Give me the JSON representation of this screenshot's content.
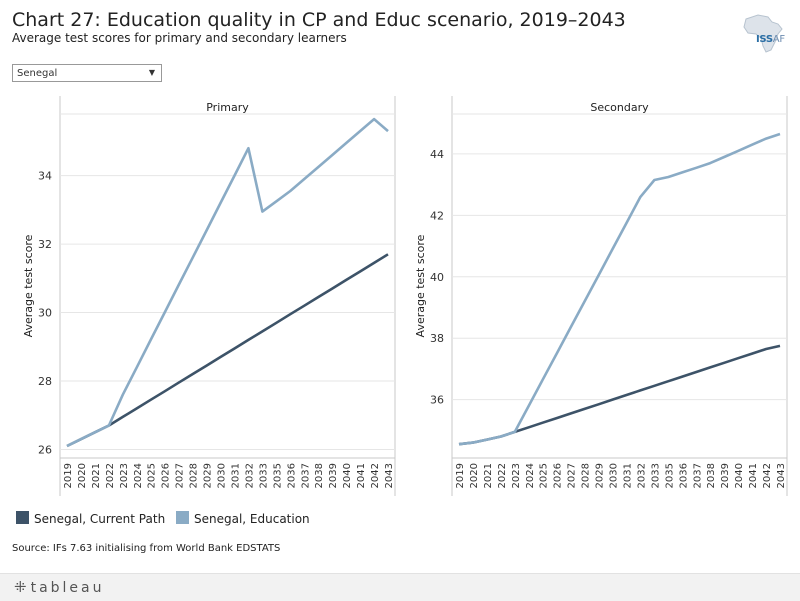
{
  "header": {
    "title": "Chart 27: Education quality in CP and Educ scenario, 2019–2043",
    "subtitle": "Average test scores for primary and secondary learners"
  },
  "logo": {
    "text": "ISS",
    "suffix": "AF",
    "icon": "africa-map-icon"
  },
  "filter": {
    "selected": "Senegal",
    "arrow_icon": "dropdown-arrow-icon"
  },
  "legend": [
    {
      "label": "Senegal, Current Path",
      "color": "#3d5368"
    },
    {
      "label": "Senegal, Education",
      "color": "#8aabc5"
    }
  ],
  "source": "Source: IFs 7.63 initialising from World Bank EDSTATS",
  "footer": {
    "brand": "tableau",
    "icon": "tableau-logo-icon"
  },
  "chart_data": [
    {
      "type": "line",
      "title": "Primary",
      "ylabel": "Average test score",
      "ylim": [
        25.75,
        35.8
      ],
      "yticks": [
        26,
        28,
        30,
        32,
        34
      ],
      "grid": true,
      "x": [
        2019,
        2020,
        2021,
        2022,
        2023,
        2024,
        2025,
        2026,
        2027,
        2028,
        2029,
        2030,
        2031,
        2032,
        2033,
        2035,
        2036,
        2037,
        2038,
        2039,
        2040,
        2041,
        2042,
        2043
      ],
      "series": [
        {
          "name": "Senegal, Current Path",
          "color": "#3d5368",
          "values": [
            26.1,
            26.3,
            26.5,
            26.7,
            26.95,
            27.2,
            27.45,
            27.7,
            27.95,
            28.2,
            28.45,
            28.7,
            28.95,
            29.2,
            29.45,
            29.7,
            29.95,
            30.2,
            30.45,
            30.7,
            30.95,
            31.2,
            31.45,
            31.7
          ]
        },
        {
          "name": "Senegal, Education",
          "color": "#8aabc5",
          "values": [
            26.1,
            26.3,
            26.5,
            26.7,
            27.6,
            28.4,
            29.2,
            30.0,
            30.8,
            31.6,
            32.4,
            33.2,
            34.0,
            34.8,
            32.95,
            33.25,
            33.55,
            33.9,
            34.25,
            34.6,
            34.95,
            35.3,
            35.65,
            35.3
          ]
        }
      ]
    },
    {
      "type": "line",
      "title": "Secondary",
      "ylabel": "Average test score",
      "ylim": [
        34.1,
        45.3
      ],
      "yticks": [
        36,
        38,
        40,
        42,
        44
      ],
      "grid": true,
      "x": [
        2019,
        2020,
        2021,
        2022,
        2023,
        2024,
        2025,
        2026,
        2027,
        2028,
        2029,
        2030,
        2031,
        2032,
        2033,
        2035,
        2036,
        2037,
        2038,
        2039,
        2040,
        2041,
        2042,
        2043
      ],
      "series": [
        {
          "name": "Senegal, Current Path",
          "color": "#3d5368",
          "values": [
            34.55,
            34.6,
            34.7,
            34.8,
            34.95,
            35.1,
            35.25,
            35.4,
            35.55,
            35.7,
            35.85,
            36.0,
            36.15,
            36.3,
            36.45,
            36.6,
            36.75,
            36.9,
            37.05,
            37.2,
            37.35,
            37.5,
            37.65,
            37.75
          ]
        },
        {
          "name": "Senegal, Education",
          "color": "#8aabc5",
          "values": [
            34.55,
            34.6,
            34.7,
            34.8,
            34.95,
            35.8,
            36.65,
            37.5,
            38.35,
            39.2,
            40.05,
            40.9,
            41.75,
            42.6,
            43.15,
            43.25,
            43.4,
            43.55,
            43.7,
            43.9,
            44.1,
            44.3,
            44.5,
            44.65
          ]
        }
      ]
    }
  ]
}
